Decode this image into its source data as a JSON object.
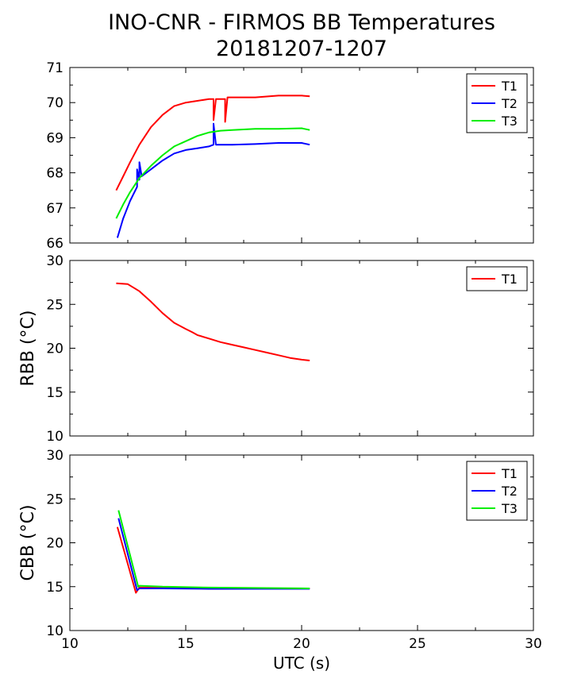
{
  "title_line1": "INO-CNR - FIRMOS BB Temperatures",
  "title_line2": "20181207-1207",
  "xlabel": "UTC (s)",
  "chart_data": [
    {
      "type": "line",
      "ylabel": "",
      "xlim": [
        10,
        30
      ],
      "ylim": [
        66,
        71
      ],
      "xticks": [
        10,
        15,
        20,
        25,
        30
      ],
      "yticks": [
        66,
        67,
        68,
        69,
        70,
        71
      ],
      "legend": "top-right",
      "series": [
        {
          "name": "T1",
          "color": "#ff0000",
          "x": [
            12.0,
            12.3,
            12.6,
            13.0,
            13.5,
            14.0,
            14.5,
            15.0,
            15.5,
            16.0,
            16.2,
            16.2,
            16.3,
            16.7,
            16.7,
            16.8,
            17.5,
            18.0,
            19.0,
            20.0,
            20.35
          ],
          "y": [
            67.5,
            67.9,
            68.3,
            68.8,
            69.3,
            69.65,
            69.9,
            70.0,
            70.05,
            70.1,
            70.1,
            69.5,
            70.1,
            70.1,
            69.45,
            70.15,
            70.15,
            70.15,
            70.2,
            70.2,
            70.18
          ]
        },
        {
          "name": "T2",
          "color": "#0000ff",
          "x": [
            12.05,
            12.3,
            12.6,
            12.9,
            12.9,
            13.0,
            13.0,
            13.1,
            13.5,
            14.0,
            14.5,
            15.0,
            15.5,
            16.0,
            16.2,
            16.2,
            16.3,
            17.0,
            18.0,
            19.0,
            20.0,
            20.35
          ],
          "y": [
            66.15,
            66.7,
            67.2,
            67.6,
            68.1,
            67.8,
            68.3,
            67.9,
            68.1,
            68.35,
            68.55,
            68.65,
            68.7,
            68.75,
            68.8,
            69.4,
            68.8,
            68.8,
            68.82,
            68.85,
            68.85,
            68.8
          ]
        },
        {
          "name": "T3",
          "color": "#00ee00",
          "x": [
            12.0,
            12.3,
            12.6,
            13.0,
            13.5,
            14.0,
            14.5,
            15.0,
            15.5,
            16.0,
            16.5,
            17.0,
            18.0,
            19.0,
            20.0,
            20.35
          ],
          "y": [
            66.7,
            67.1,
            67.45,
            67.85,
            68.2,
            68.5,
            68.75,
            68.9,
            69.05,
            69.15,
            69.2,
            69.22,
            69.25,
            69.25,
            69.27,
            69.22
          ]
        }
      ]
    },
    {
      "type": "line",
      "ylabel": "RBB (°C)",
      "xlim": [
        10,
        30
      ],
      "ylim": [
        10,
        30
      ],
      "xticks": [
        10,
        15,
        20,
        25,
        30
      ],
      "yticks": [
        10,
        15,
        20,
        25,
        30
      ],
      "legend": "top-right",
      "series": [
        {
          "name": "T1",
          "color": "#ff0000",
          "x": [
            12.0,
            12.5,
            13.0,
            13.5,
            14.0,
            14.5,
            15.0,
            15.3,
            15.5,
            16.0,
            16.5,
            17.0,
            17.5,
            18.0,
            18.5,
            19.0,
            19.5,
            20.0,
            20.35
          ],
          "y": [
            27.4,
            27.3,
            26.5,
            25.3,
            24.0,
            22.9,
            22.2,
            21.8,
            21.5,
            21.1,
            20.7,
            20.4,
            20.1,
            19.8,
            19.5,
            19.2,
            18.9,
            18.7,
            18.6
          ]
        }
      ]
    },
    {
      "type": "line",
      "ylabel": "CBB (°C)",
      "xlim": [
        10,
        30
      ],
      "ylim": [
        10,
        30
      ],
      "xticks": [
        10,
        15,
        20,
        25,
        30
      ],
      "yticks": [
        10,
        15,
        20,
        25,
        30
      ],
      "xticklabels": [
        "10",
        "15",
        "20",
        "25",
        "30"
      ],
      "legend": "top-right",
      "series": [
        {
          "name": "T1",
          "color": "#ff0000",
          "x": [
            12.05,
            12.85,
            13.0,
            14.0,
            16.0,
            18.0,
            20.35
          ],
          "y": [
            21.8,
            14.3,
            14.9,
            14.9,
            14.8,
            14.8,
            14.8
          ]
        },
        {
          "name": "T2",
          "color": "#0000ff",
          "x": [
            12.1,
            12.9,
            13.0,
            14.0,
            16.0,
            18.0,
            20.35
          ],
          "y": [
            22.8,
            14.6,
            14.8,
            14.8,
            14.75,
            14.75,
            14.75
          ]
        },
        {
          "name": "T3",
          "color": "#00ee00",
          "x": [
            12.1,
            12.95,
            13.0,
            14.0,
            16.0,
            18.0,
            20.35
          ],
          "y": [
            23.7,
            15.0,
            15.1,
            15.0,
            14.9,
            14.85,
            14.8
          ]
        }
      ]
    }
  ]
}
